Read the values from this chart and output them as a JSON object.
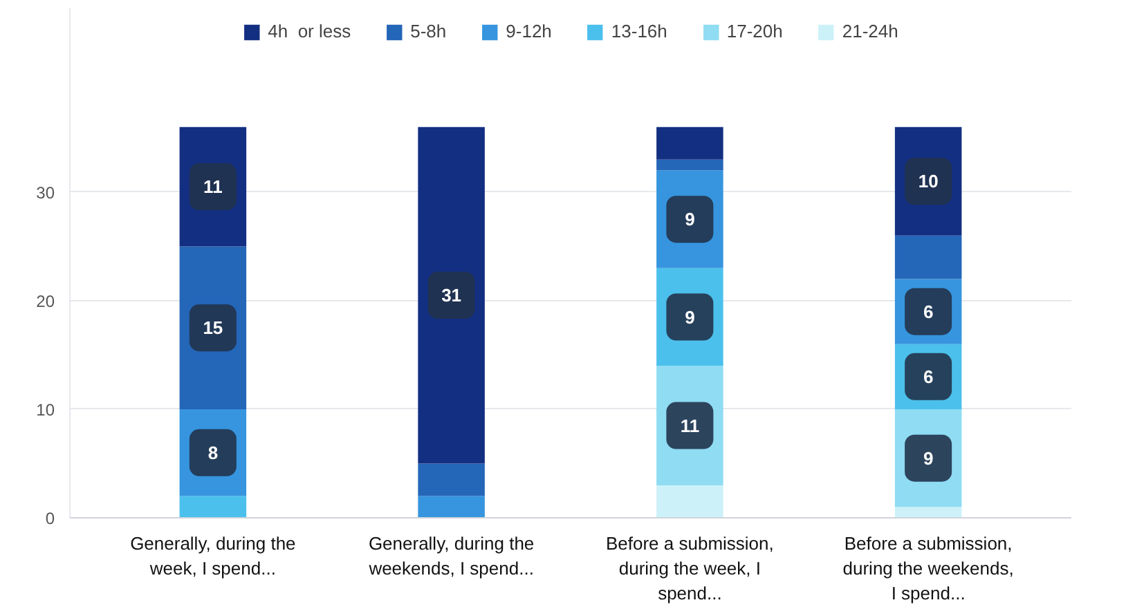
{
  "chart_data": {
    "type": "bar",
    "stacked": true,
    "categories": [
      "Generally, during the week, I spend...",
      "Generally, during the weekends, I spend...",
      "Before a submission, during the week, I spend...",
      "Before a submission, during the weekends, I spend..."
    ],
    "series": [
      {
        "name": "21-24h",
        "color": "#cdf1f9",
        "values": [
          0,
          0,
          3,
          1
        ],
        "value_labels": [
          null,
          null,
          null,
          null
        ]
      },
      {
        "name": "17-20h",
        "color": "#8fdcf3",
        "values": [
          0,
          0,
          11,
          9
        ],
        "value_labels": [
          null,
          null,
          "11",
          "9"
        ]
      },
      {
        "name": "13-16h",
        "color": "#4cc0ec",
        "values": [
          2,
          0,
          9,
          6
        ],
        "value_labels": [
          null,
          null,
          "9",
          "6"
        ]
      },
      {
        "name": "9-12h",
        "color": "#3695de",
        "values": [
          8,
          2,
          9,
          6
        ],
        "value_labels": [
          "8",
          null,
          "9",
          "6"
        ]
      },
      {
        "name": "5-8h",
        "color": "#2466b8",
        "values": [
          15,
          3,
          1,
          4
        ],
        "value_labels": [
          "15",
          null,
          null,
          null
        ]
      },
      {
        "name": "4h  or less",
        "color": "#132f82",
        "values": [
          11,
          31,
          3,
          10
        ],
        "value_labels": [
          "11",
          "31",
          null,
          "10"
        ]
      }
    ],
    "ylim": [
      0,
      47
    ],
    "yticks": [
      0,
      10,
      20,
      30
    ],
    "grid": "y",
    "legend": "top"
  }
}
